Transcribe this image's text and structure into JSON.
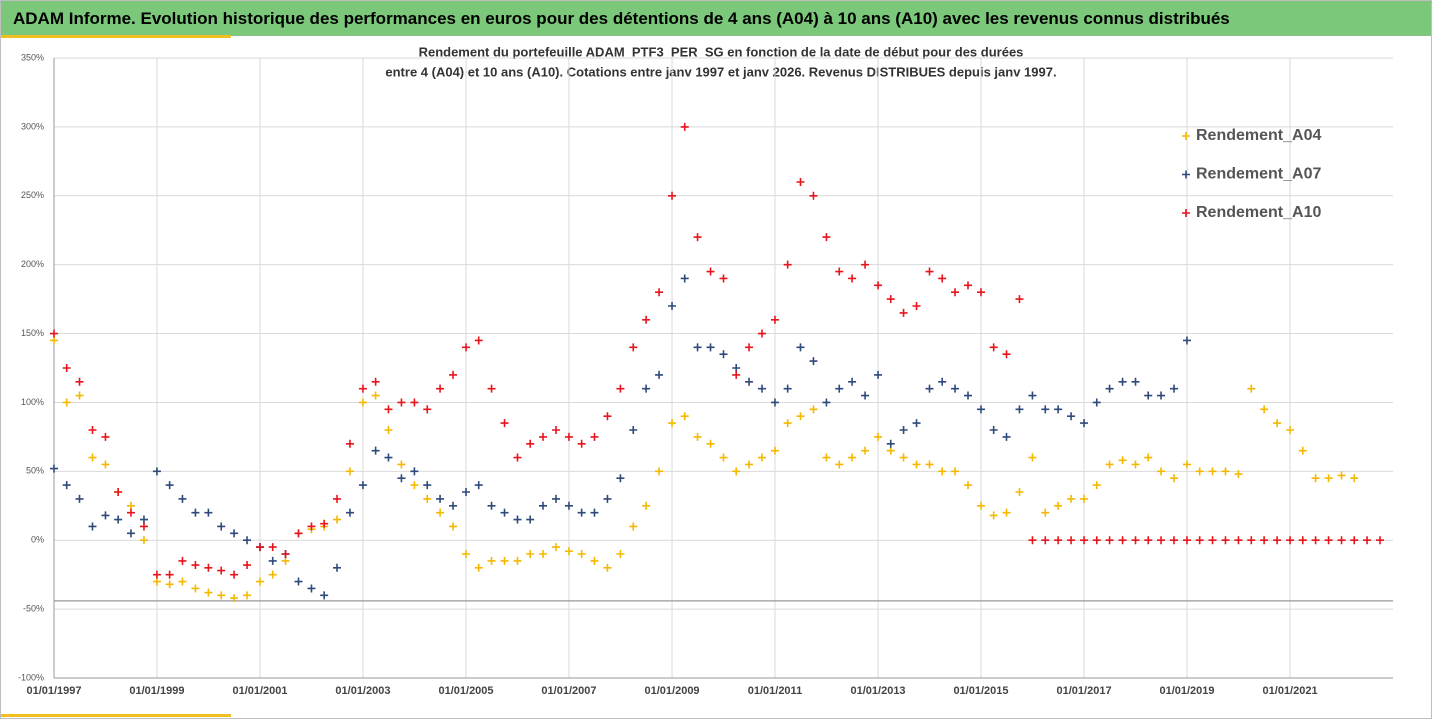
{
  "header": {
    "title": "ADAM Informe. Evolution historique des performances en euros pour des détentions de 4 ans (A04) à 10 ans (A10) avec les revenus connus distribués"
  },
  "chart_data": {
    "type": "scatter",
    "title": "Rendement du portefeuille ADAM_PTF3_PER_SG  en fonction de la date de début pour des durées",
    "subtitle": "entre 4 (A04) et 10 ans (A10). Cotations entre janv 1997 et janv 2026. Revenus DISTRIBUES depuis janv 1997.",
    "xlim": [
      "1997-01-01",
      "2023-01-01"
    ],
    "xticks": [
      {
        "value": "1997-01-01",
        "label": "01/01/1997"
      },
      {
        "value": "1999-01-01",
        "label": "01/01/1999"
      },
      {
        "value": "2001-01-01",
        "label": "01/01/2001"
      },
      {
        "value": "2003-01-01",
        "label": "01/01/2003"
      },
      {
        "value": "2005-01-01",
        "label": "01/01/2005"
      },
      {
        "value": "2007-01-01",
        "label": "01/01/2007"
      },
      {
        "value": "2009-01-01",
        "label": "01/01/2009"
      },
      {
        "value": "2011-01-01",
        "label": "01/01/2011"
      },
      {
        "value": "2013-01-01",
        "label": "01/01/2013"
      },
      {
        "value": "2015-01-01",
        "label": "01/01/2015"
      },
      {
        "value": "2017-01-01",
        "label": "01/01/2017"
      },
      {
        "value": "2019-01-01",
        "label": "01/01/2019"
      },
      {
        "value": "2021-01-01",
        "label": "01/01/2021"
      }
    ],
    "ylim": [
      -100,
      350
    ],
    "yticks": [
      {
        "value": -100,
        "label": "-100%"
      },
      {
        "value": -50,
        "label": "-50%"
      },
      {
        "value": 0,
        "label": "0%"
      },
      {
        "value": 50,
        "label": "50%"
      },
      {
        "value": 100,
        "label": "100%"
      },
      {
        "value": 150,
        "label": "150%"
      },
      {
        "value": 200,
        "label": "200%"
      },
      {
        "value": 250,
        "label": "250%"
      },
      {
        "value": 300,
        "label": "300%"
      },
      {
        "value": 350,
        "label": "350%"
      }
    ],
    "grid": true,
    "reference_line": -44,
    "legend": "right",
    "series": [
      {
        "name": "Rendement_A04",
        "color": "#f5b800",
        "x": [
          "1997-01-01",
          "1997-04-01",
          "1997-07-01",
          "1997-10-01",
          "1998-01-01",
          "1998-04-01",
          "1998-07-01",
          "1998-10-01",
          "1999-01-01",
          "1999-04-01",
          "1999-07-01",
          "1999-10-01",
          "2000-01-01",
          "2000-04-01",
          "2000-07-01",
          "2000-10-01",
          "2001-01-01",
          "2001-04-01",
          "2001-07-01",
          "2001-10-01",
          "2002-01-01",
          "2002-04-01",
          "2002-07-01",
          "2002-10-01",
          "2003-01-01",
          "2003-04-01",
          "2003-07-01",
          "2003-10-01",
          "2004-01-01",
          "2004-04-01",
          "2004-07-01",
          "2004-10-01",
          "2005-01-01",
          "2005-04-01",
          "2005-07-01",
          "2005-10-01",
          "2006-01-01",
          "2006-04-01",
          "2006-07-01",
          "2006-10-01",
          "2007-01-01",
          "2007-04-01",
          "2007-07-01",
          "2007-10-01",
          "2008-01-01",
          "2008-04-01",
          "2008-07-01",
          "2008-10-01",
          "2009-01-01",
          "2009-04-01",
          "2009-07-01",
          "2009-10-01",
          "2010-01-01",
          "2010-04-01",
          "2010-07-01",
          "2010-10-01",
          "2011-01-01",
          "2011-04-01",
          "2011-07-01",
          "2011-10-01",
          "2012-01-01",
          "2012-04-01",
          "2012-07-01",
          "2012-10-01",
          "2013-01-01",
          "2013-04-01",
          "2013-07-01",
          "2013-10-01",
          "2014-01-01",
          "2014-04-01",
          "2014-07-01",
          "2014-10-01",
          "2015-01-01",
          "2015-04-01",
          "2015-07-01",
          "2015-10-01",
          "2016-01-01",
          "2016-04-01",
          "2016-07-01",
          "2016-10-01",
          "2017-01-01",
          "2017-04-01",
          "2017-07-01",
          "2017-10-01",
          "2018-01-01",
          "2018-04-01",
          "2018-07-01",
          "2018-10-01",
          "2019-01-01",
          "2019-04-01",
          "2019-07-01",
          "2019-10-01",
          "2020-01-01",
          "2020-04-01",
          "2020-07-01",
          "2020-10-01",
          "2021-01-01",
          "2021-04-01",
          "2021-07-01",
          "2021-10-01",
          "2022-01-01",
          "2022-04-01"
        ],
        "values": [
          145,
          100,
          105,
          60,
          55,
          35,
          25,
          0,
          -30,
          -32,
          -30,
          -35,
          -38,
          -40,
          -42,
          -40,
          -30,
          -25,
          -15,
          5,
          8,
          10,
          15,
          50,
          100,
          105,
          80,
          55,
          40,
          30,
          20,
          10,
          -10,
          -20,
          -15,
          -15,
          -15,
          -10,
          -10,
          -5,
          -8,
          -10,
          -15,
          -20,
          -10,
          10,
          25,
          50,
          85,
          90,
          75,
          70,
          60,
          50,
          55,
          60,
          65,
          85,
          90,
          95,
          60,
          55,
          60,
          65,
          75,
          65,
          60,
          55,
          55,
          50,
          50,
          40,
          25,
          18,
          20,
          35,
          60,
          20,
          25,
          30,
          30,
          40,
          55,
          58,
          55,
          60,
          50,
          45,
          55,
          50,
          50,
          50,
          48,
          110,
          95,
          85,
          80,
          65,
          45,
          45,
          47,
          45
        ]
      },
      {
        "name": "Rendement_A07",
        "color": "#2e4a7a",
        "x": [
          "1997-01-01",
          "1997-04-01",
          "1997-07-01",
          "1997-10-01",
          "1998-01-01",
          "1998-04-01",
          "1998-07-01",
          "1998-10-01",
          "1999-01-01",
          "1999-04-01",
          "1999-07-01",
          "1999-10-01",
          "2000-01-01",
          "2000-04-01",
          "2000-07-01",
          "2000-10-01",
          "2001-01-01",
          "2001-04-01",
          "2001-07-01",
          "2001-10-01",
          "2002-01-01",
          "2002-04-01",
          "2002-07-01",
          "2002-10-01",
          "2003-01-01",
          "2003-04-01",
          "2003-07-01",
          "2003-10-01",
          "2004-01-01",
          "2004-04-01",
          "2004-07-01",
          "2004-10-01",
          "2005-01-01",
          "2005-04-01",
          "2005-07-01",
          "2005-10-01",
          "2006-01-01",
          "2006-04-01",
          "2006-07-01",
          "2006-10-01",
          "2007-01-01",
          "2007-04-01",
          "2007-07-01",
          "2007-10-01",
          "2008-01-01",
          "2008-04-01",
          "2008-07-01",
          "2008-10-01",
          "2009-01-01",
          "2009-04-01",
          "2009-07-01",
          "2009-10-01",
          "2010-01-01",
          "2010-04-01",
          "2010-07-01",
          "2010-10-01",
          "2011-01-01",
          "2011-04-01",
          "2011-07-01",
          "2011-10-01",
          "2012-01-01",
          "2012-04-01",
          "2012-07-01",
          "2012-10-01",
          "2013-01-01",
          "2013-04-01",
          "2013-07-01",
          "2013-10-01",
          "2014-01-01",
          "2014-04-01",
          "2014-07-01",
          "2014-10-01",
          "2015-01-01",
          "2015-04-01",
          "2015-07-01",
          "2015-10-01",
          "2016-01-01",
          "2016-04-01",
          "2016-07-01",
          "2016-10-01",
          "2017-01-01",
          "2017-04-01",
          "2017-07-01",
          "2017-10-01",
          "2018-01-01",
          "2018-04-01",
          "2018-07-01",
          "2018-10-01",
          "2019-01-01"
        ],
        "values": [
          52,
          40,
          30,
          10,
          18,
          15,
          5,
          15,
          50,
          40,
          30,
          20,
          20,
          10,
          5,
          0,
          -5,
          -15,
          -10,
          -30,
          -35,
          -40,
          -20,
          20,
          40,
          65,
          60,
          45,
          50,
          40,
          30,
          25,
          35,
          40,
          25,
          20,
          15,
          15,
          25,
          30,
          25,
          20,
          20,
          30,
          45,
          80,
          110,
          120,
          170,
          190,
          140,
          140,
          135,
          125,
          115,
          110,
          100,
          110,
          140,
          130,
          100,
          110,
          115,
          105,
          120,
          70,
          80,
          85,
          110,
          115,
          110,
          105,
          95,
          80,
          75,
          95,
          105,
          95,
          95,
          90,
          85,
          100,
          110,
          115,
          115,
          105,
          105,
          110,
          145
        ]
      },
      {
        "name": "Rendement_A10",
        "color": "#e8141c",
        "x": [
          "1997-01-01",
          "1997-04-01",
          "1997-07-01",
          "1997-10-01",
          "1998-01-01",
          "1998-04-01",
          "1998-07-01",
          "1998-10-01",
          "1999-01-01",
          "1999-04-01",
          "1999-07-01",
          "1999-10-01",
          "2000-01-01",
          "2000-04-01",
          "2000-07-01",
          "2000-10-01",
          "2001-01-01",
          "2001-04-01",
          "2001-07-01",
          "2001-10-01",
          "2002-01-01",
          "2002-04-01",
          "2002-07-01",
          "2002-10-01",
          "2003-01-01",
          "2003-04-01",
          "2003-07-01",
          "2003-10-01",
          "2004-01-01",
          "2004-04-01",
          "2004-07-01",
          "2004-10-01",
          "2005-01-01",
          "2005-04-01",
          "2005-07-01",
          "2005-10-01",
          "2006-01-01",
          "2006-04-01",
          "2006-07-01",
          "2006-10-01",
          "2007-01-01",
          "2007-04-01",
          "2007-07-01",
          "2007-10-01",
          "2008-01-01",
          "2008-04-01",
          "2008-07-01",
          "2008-10-01",
          "2009-01-01",
          "2009-04-01",
          "2009-07-01",
          "2009-10-01",
          "2010-01-01",
          "2010-04-01",
          "2010-07-01",
          "2010-10-01",
          "2011-01-01",
          "2011-04-01",
          "2011-07-01",
          "2011-10-01",
          "2012-01-01",
          "2012-04-01",
          "2012-07-01",
          "2012-10-01",
          "2013-01-01",
          "2013-04-01",
          "2013-07-01",
          "2013-10-01",
          "2014-01-01",
          "2014-04-01",
          "2014-07-01",
          "2014-10-01",
          "2015-01-01",
          "2015-04-01",
          "2015-07-01",
          "2015-10-01",
          "2016-01-01",
          "2016-04-01",
          "2016-07-01",
          "2016-10-01",
          "2017-01-01",
          "2017-04-01",
          "2017-07-01",
          "2017-10-01",
          "2018-01-01",
          "2018-04-01",
          "2018-07-01",
          "2018-10-01",
          "2019-01-01",
          "2019-04-01",
          "2019-07-01",
          "2019-10-01",
          "2020-01-01",
          "2020-04-01",
          "2020-07-01",
          "2020-10-01",
          "2021-01-01",
          "2021-04-01",
          "2021-07-01",
          "2021-10-01",
          "2022-01-01",
          "2022-04-01",
          "2022-07-01",
          "2022-10-01"
        ],
        "values": [
          150,
          125,
          115,
          80,
          75,
          35,
          20,
          10,
          -25,
          -25,
          -15,
          -18,
          -20,
          -22,
          -25,
          -18,
          -5,
          -5,
          -10,
          5,
          10,
          12,
          30,
          70,
          110,
          115,
          95,
          100,
          100,
          95,
          110,
          120,
          140,
          145,
          110,
          85,
          60,
          70,
          75,
          80,
          75,
          70,
          75,
          90,
          110,
          140,
          160,
          180,
          250,
          300,
          220,
          195,
          190,
          120,
          140,
          150,
          160,
          200,
          260,
          250,
          220,
          195,
          190,
          200,
          185,
          175,
          165,
          170,
          195,
          190,
          180,
          185,
          180,
          140,
          135,
          175,
          0,
          0,
          0,
          0,
          0,
          0,
          0,
          0,
          0,
          0,
          0,
          0,
          0,
          0,
          0,
          0,
          0,
          0,
          0,
          0,
          0,
          0,
          0,
          0,
          0,
          0,
          0,
          0
        ]
      }
    ]
  }
}
